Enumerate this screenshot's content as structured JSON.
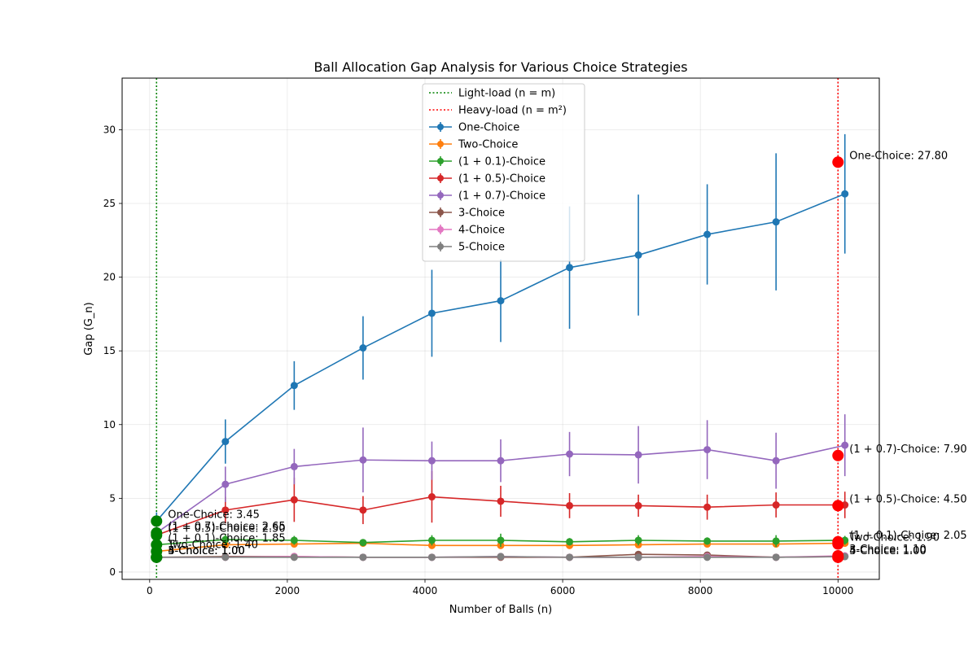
{
  "chart_data": {
    "type": "line",
    "title": "Ball Allocation Gap Analysis for Various Choice Strategies",
    "xlabel": "Number of Balls (n)",
    "ylabel": "Gap (G_n)",
    "xlim": [
      -400,
      10600
    ],
    "ylim": [
      -0.5,
      33.5
    ],
    "x_ticks": [
      0,
      2000,
      4000,
      6000,
      8000,
      10000
    ],
    "y_ticks": [
      0,
      5,
      10,
      15,
      20,
      25,
      30
    ],
    "grid": true,
    "legend_position": "upper-center",
    "x": [
      100,
      1100,
      2100,
      3100,
      4100,
      5100,
      6100,
      7100,
      8100,
      9100,
      10100
    ],
    "series": [
      {
        "name": "One-Choice",
        "color": "#1f77b4",
        "values": [
          3.45,
          8.85,
          12.65,
          15.2,
          17.55,
          18.4,
          20.65,
          21.5,
          22.9,
          23.75,
          25.65
        ],
        "errors": [
          0.6,
          1.5,
          1.65,
          2.15,
          2.95,
          2.8,
          4.15,
          4.1,
          3.4,
          4.65,
          4.05
        ]
      },
      {
        "name": "Two-Choice",
        "color": "#ff7f0e",
        "values": [
          1.4,
          1.85,
          1.9,
          1.95,
          1.8,
          1.8,
          1.8,
          1.85,
          1.9,
          1.9,
          1.95
        ],
        "errors": [
          0.1,
          0.2,
          0.15,
          0.15,
          0.2,
          0.2,
          0.2,
          0.2,
          0.15,
          0.15,
          0.15
        ]
      },
      {
        "name": "(1 + 0.1)-Choice",
        "color": "#2ca02c",
        "values": [
          1.85,
          2.2,
          2.15,
          2.0,
          2.15,
          2.15,
          2.05,
          2.15,
          2.1,
          2.1,
          2.15
        ],
        "errors": [
          0.3,
          0.35,
          0.3,
          0.2,
          0.35,
          0.45,
          0.25,
          0.35,
          0.25,
          0.4,
          0.3
        ]
      },
      {
        "name": "(1 + 0.5)-Choice",
        "color": "#d62728",
        "values": [
          2.5,
          4.2,
          4.9,
          4.2,
          5.1,
          4.8,
          4.5,
          4.5,
          4.4,
          4.55,
          4.55
        ],
        "errors": [
          0.6,
          0.9,
          1.5,
          0.95,
          1.75,
          1.05,
          0.85,
          0.75,
          0.85,
          0.85,
          0.9
        ]
      },
      {
        "name": "(1 + 0.7)-Choice",
        "color": "#9467bd",
        "values": [
          2.65,
          5.95,
          7.15,
          7.6,
          7.55,
          7.55,
          8.0,
          7.95,
          8.3,
          7.55,
          8.6
        ],
        "errors": [
          0.5,
          1.2,
          1.2,
          2.2,
          1.3,
          1.45,
          1.5,
          1.95,
          2.0,
          1.9,
          2.1
        ]
      },
      {
        "name": "3-Choice",
        "color": "#8c564b",
        "values": [
          1.0,
          1.05,
          1.05,
          1.0,
          1.0,
          1.0,
          1.0,
          1.2,
          1.15,
          1.0,
          1.05
        ],
        "errors": [
          0.0,
          0.05,
          0.05,
          0.0,
          0.0,
          0.05,
          0.0,
          0.2,
          0.15,
          0.0,
          0.1
        ]
      },
      {
        "name": "4-Choice",
        "color": "#e377c2",
        "values": [
          1.0,
          1.0,
          1.05,
          1.0,
          1.0,
          1.05,
          1.0,
          1.0,
          1.05,
          1.0,
          1.1
        ],
        "errors": [
          0.0,
          0.0,
          0.05,
          0.0,
          0.0,
          0.05,
          0.0,
          0.0,
          0.05,
          0.0,
          0.1
        ]
      },
      {
        "name": "5-Choice",
        "color": "#7f7f7f",
        "values": [
          1.0,
          1.0,
          1.0,
          1.0,
          1.0,
          1.05,
          1.0,
          1.0,
          1.0,
          1.0,
          1.05
        ],
        "errors": [
          0.0,
          0.0,
          0.05,
          0.0,
          0.0,
          0.05,
          0.0,
          0.05,
          0.0,
          0.0,
          0.1
        ]
      }
    ],
    "reference_lines": [
      {
        "name": "Light-load (n = m)",
        "x": 100,
        "color": "#008000"
      },
      {
        "name": "Heavy-load (n = m²)",
        "x": 10000,
        "color": "#ff0000"
      }
    ],
    "light_load_markers": {
      "x": 100,
      "color": "#008000",
      "points": [
        {
          "series": "One-Choice",
          "y": 3.45,
          "label": "One-Choice: 3.45"
        },
        {
          "series": "Two-Choice",
          "y": 1.4,
          "label": "Two-Choice: 1.40"
        },
        {
          "series": "(1 + 0.1)-Choice",
          "y": 1.85,
          "label": "(1 + 0.1)-Choice: 1.85"
        },
        {
          "series": "(1 + 0.5)-Choice",
          "y": 2.5,
          "label": "(1 + 0.5)-Choice: 2.50"
        },
        {
          "series": "(1 + 0.7)-Choice",
          "y": 2.65,
          "label": "(1 + 0.7)-Choice: 2.65"
        },
        {
          "series": "3-Choice",
          "y": 1.0,
          "label": "3-Choice: 1.00"
        },
        {
          "series": "4-Choice",
          "y": 1.0,
          "label": "4-Choice: 1.00"
        },
        {
          "series": "5-Choice",
          "y": 1.0,
          "label": "5-Choice: 1.00"
        }
      ]
    },
    "heavy_load_markers": {
      "x": 10000,
      "color": "#ff0000",
      "points": [
        {
          "series": "One-Choice",
          "y": 27.8,
          "label": "One-Choice: 27.80"
        },
        {
          "series": "Two-Choice",
          "y": 1.9,
          "label": "Two-Choice: 1.90"
        },
        {
          "series": "(1 + 0.1)-Choice",
          "y": 2.05,
          "label": "(1 + 0.1)-Choice: 2.05"
        },
        {
          "series": "(1 + 0.5)-Choice",
          "y": 4.5,
          "label": "(1 + 0.5)-Choice: 4.50"
        },
        {
          "series": "(1 + 0.7)-Choice",
          "y": 7.9,
          "label": "(1 + 0.7)-Choice: 7.90"
        },
        {
          "series": "3-Choice",
          "y": 1.1,
          "label": "3-Choice: 1.10"
        },
        {
          "series": "4-Choice",
          "y": 1.0,
          "label": "4-Choice: 1.00"
        },
        {
          "series": "5-Choice",
          "y": 1.0,
          "label": "5-Choice: 1.00"
        }
      ]
    }
  }
}
